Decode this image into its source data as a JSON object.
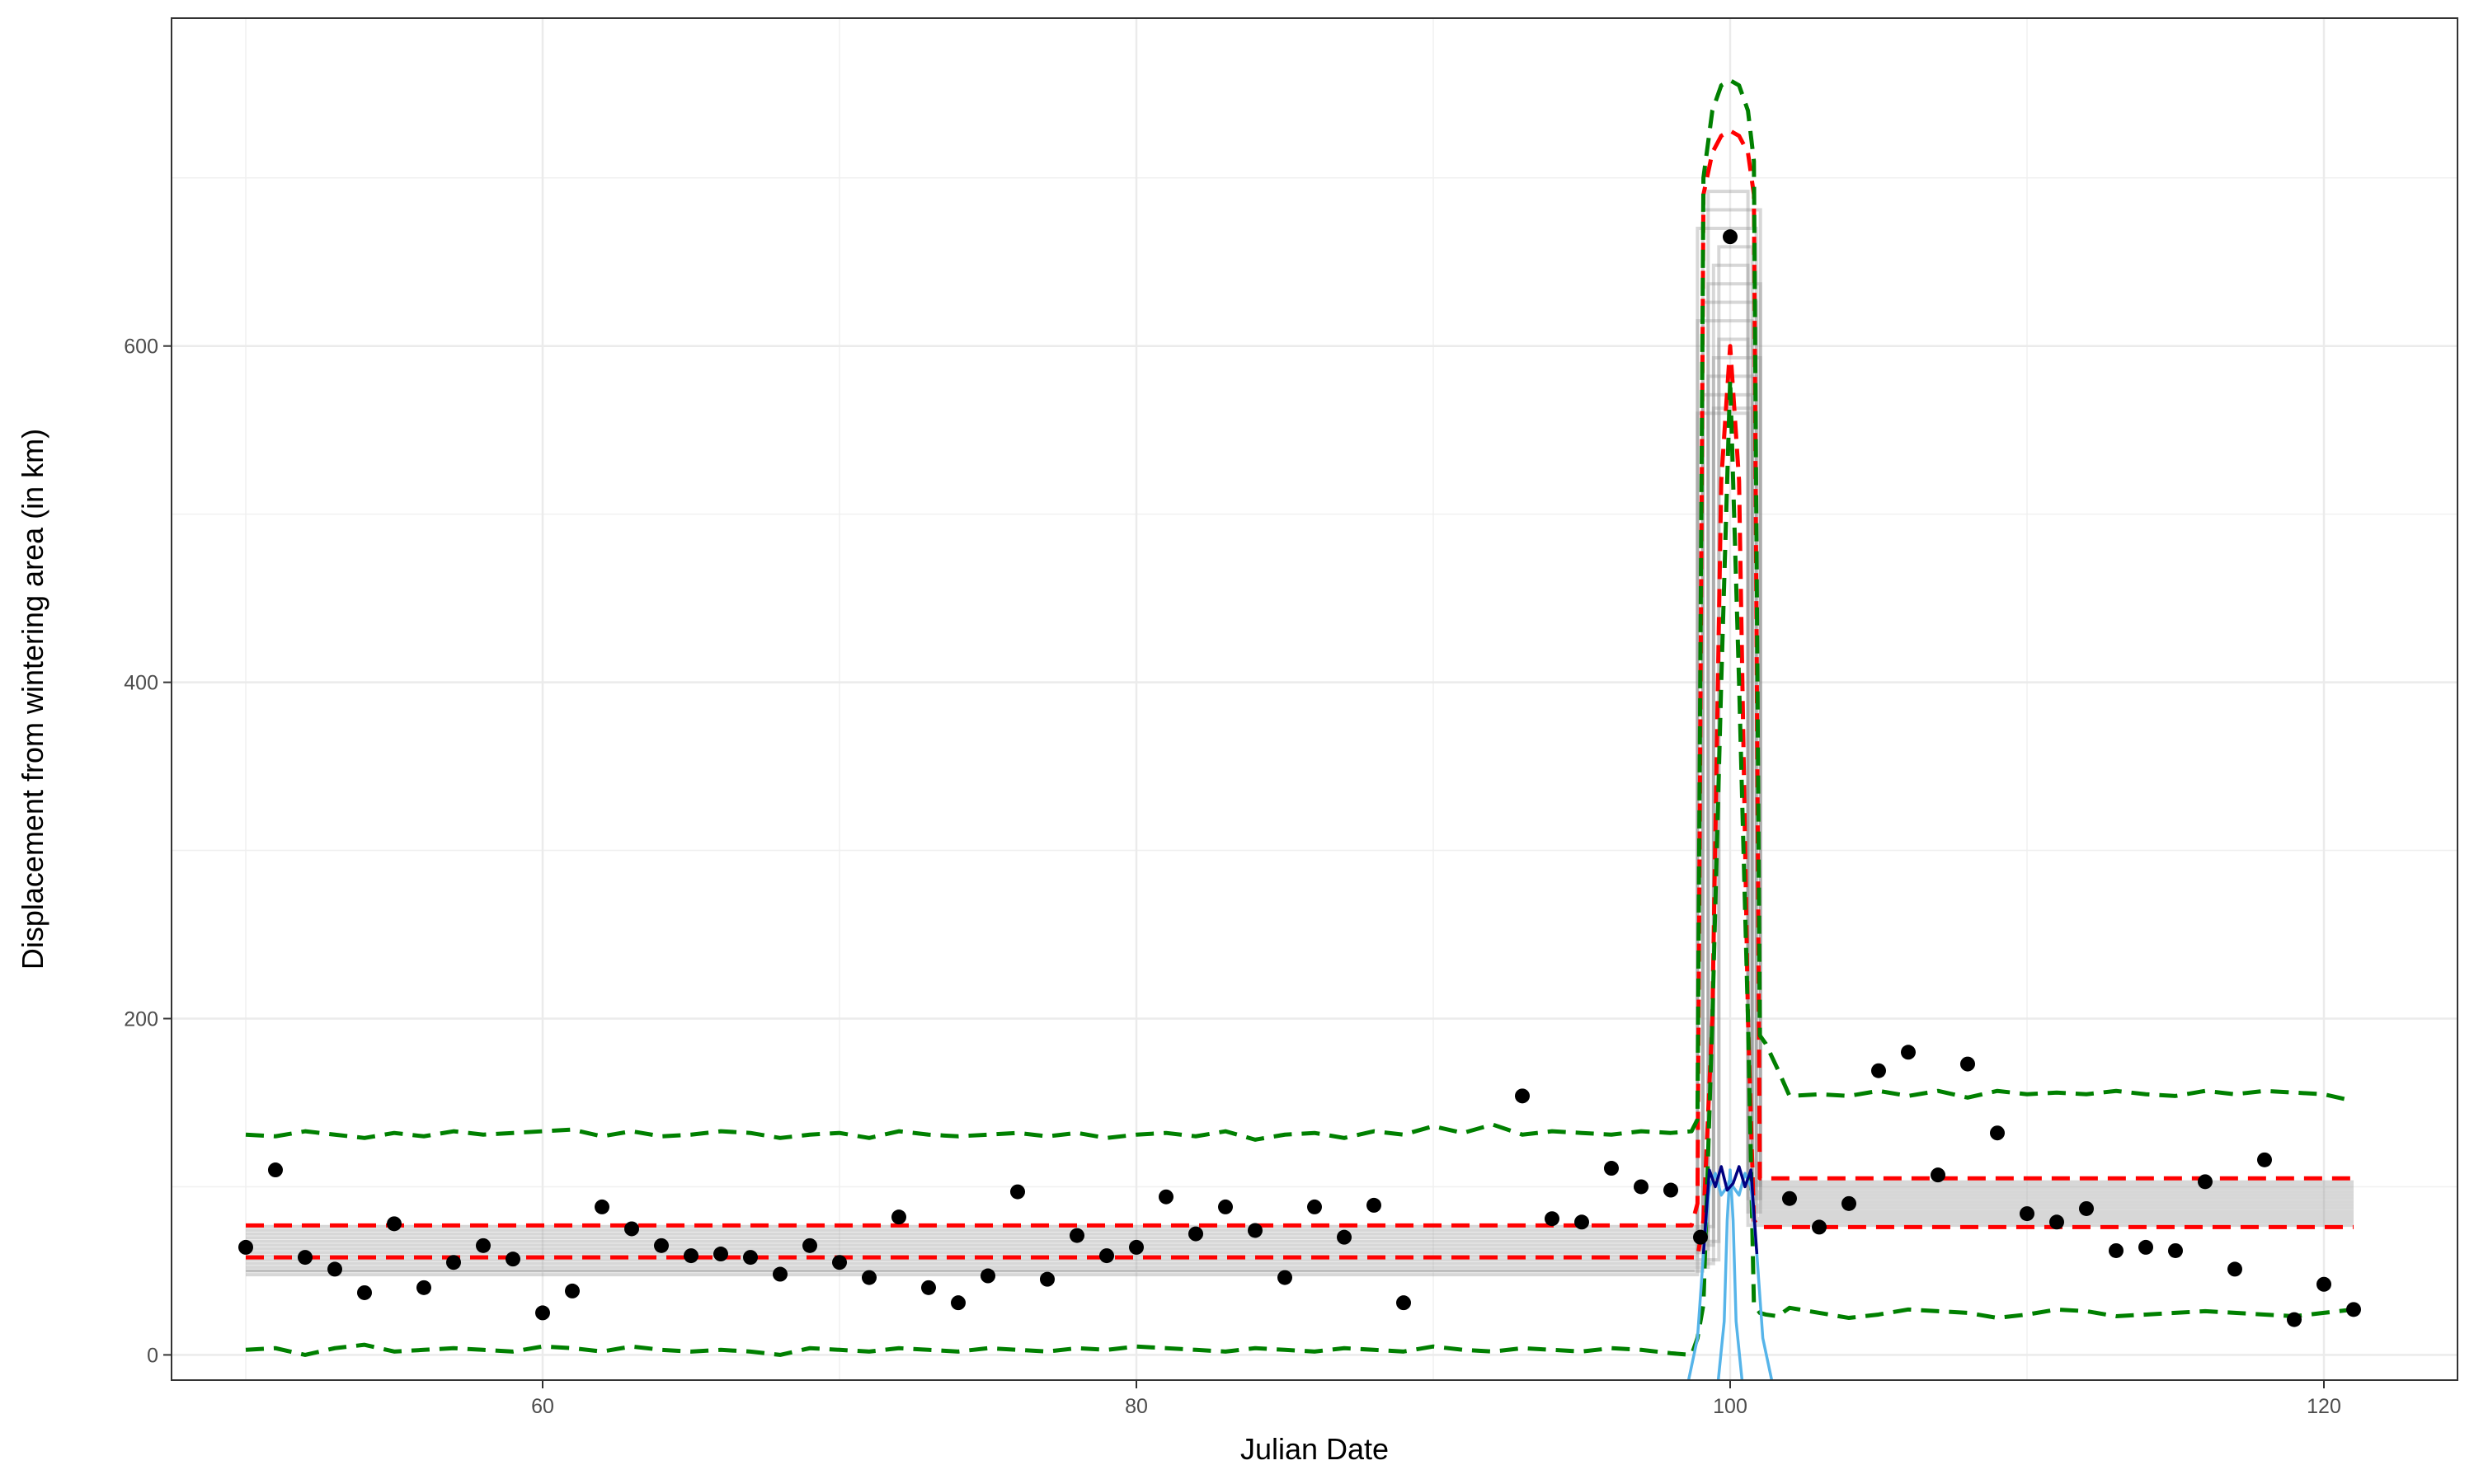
{
  "chart_data": {
    "type": "scatter",
    "title": "",
    "xlabel": "Julian Date",
    "ylabel": "Displacement from wintering area (in km)",
    "xlim": [
      47.5,
      124.5
    ],
    "ylim": [
      -15,
      795
    ],
    "x_ticks": [
      60,
      80,
      100,
      120
    ],
    "y_ticks": [
      0,
      200,
      400,
      600
    ],
    "grid": true,
    "legend": "none",
    "points": {
      "x": [
        50,
        51,
        52,
        53,
        54,
        55,
        56,
        57,
        58,
        59,
        60,
        61,
        62,
        63,
        64,
        65,
        66,
        67,
        68,
        69,
        70,
        71,
        72,
        73,
        74,
        75,
        76,
        77,
        78,
        79,
        80,
        81,
        82,
        83,
        84,
        85,
        86,
        87,
        88,
        89,
        93,
        94,
        95,
        96,
        97,
        98,
        99,
        100,
        102,
        103,
        104,
        105,
        106,
        107,
        108,
        109,
        110,
        111,
        112,
        113,
        114,
        115,
        116,
        117,
        118,
        119,
        120,
        121
      ],
      "y": [
        64,
        110,
        58,
        51,
        37,
        78,
        40,
        55,
        65,
        57,
        25,
        38,
        88,
        75,
        65,
        59,
        60,
        58,
        48,
        65,
        55,
        46,
        82,
        40,
        31,
        47,
        97,
        45,
        71,
        59,
        64,
        94,
        72,
        88,
        74,
        46,
        88,
        70,
        89,
        31,
        154,
        81,
        79,
        111,
        100,
        98,
        70,
        665,
        93,
        76,
        90,
        169,
        180,
        107,
        173,
        132,
        84,
        79,
        87,
        62,
        64,
        62,
        103,
        51,
        116,
        21,
        42,
        27
      ]
    },
    "series": [
      {
        "color": "#ff0000",
        "style": "dashed",
        "x": [
          50,
          98.7,
          98.9,
          99.1,
          99.4,
          99.7,
          100,
          100.3,
          100.6,
          100.8,
          101,
          101.2,
          121
        ],
        "upper": [
          77,
          77,
          90,
          690,
          715,
          725,
          728,
          725,
          715,
          690,
          105,
          105,
          105
        ],
        "lower": [
          58,
          58,
          58,
          80,
          200,
          520,
          600,
          520,
          200,
          80,
          76,
          76,
          76
        ]
      },
      {
        "color": "#008000",
        "style": "dashed",
        "x": [
          50,
          51,
          52,
          53,
          54,
          55,
          56,
          57,
          58,
          59,
          60,
          61,
          62,
          63,
          64,
          65,
          66,
          67,
          68,
          69,
          70,
          71,
          72,
          73,
          74,
          75,
          76,
          77,
          78,
          79,
          80,
          81,
          82,
          83,
          84,
          85,
          86,
          87,
          88,
          89,
          90,
          91,
          92,
          93,
          94,
          95,
          96,
          97,
          98,
          98.7,
          98.9,
          99.1,
          99.4,
          99.7,
          100,
          100.3,
          100.6,
          100.8,
          101,
          101.2,
          101.6,
          102,
          103,
          104,
          105,
          106,
          107,
          108,
          109,
          110,
          111,
          112,
          113,
          114,
          115,
          116,
          117,
          118,
          119,
          120,
          121
        ],
        "upper": [
          131,
          130,
          133,
          131,
          129,
          132,
          130,
          133,
          131,
          132,
          133,
          134,
          130,
          133,
          130,
          131,
          133,
          132,
          129,
          131,
          132,
          129,
          133,
          131,
          130,
          131,
          132,
          130,
          132,
          129,
          131,
          132,
          130,
          133,
          128,
          131,
          132,
          129,
          133,
          131,
          136,
          132,
          137,
          131,
          133,
          132,
          131,
          133,
          132,
          133,
          140,
          700,
          740,
          755,
          758,
          755,
          740,
          710,
          190,
          185,
          170,
          154,
          155,
          154,
          157,
          154,
          157,
          153,
          157,
          155,
          156,
          155,
          157,
          155,
          154,
          157,
          155,
          157,
          156,
          155,
          151
        ],
        "lower": [
          3,
          4,
          0,
          4,
          6,
          2,
          3,
          4,
          3,
          2,
          5,
          4,
          2,
          5,
          3,
          2,
          3,
          2,
          0,
          4,
          3,
          2,
          4,
          3,
          2,
          4,
          3,
          2,
          4,
          3,
          5,
          4,
          3,
          2,
          4,
          3,
          2,
          4,
          3,
          2,
          5,
          3,
          2,
          4,
          3,
          2,
          4,
          3,
          1,
          0,
          10,
          30,
          200,
          400,
          580,
          400,
          200,
          30,
          25,
          24,
          23,
          28,
          25,
          22,
          24,
          27,
          26,
          25,
          22,
          24,
          27,
          26,
          23,
          24,
          25,
          26,
          25,
          24,
          23,
          25,
          27
        ]
      },
      {
        "color": "#56B4E9",
        "style": "solid",
        "x": [
          98.6,
          98.9,
          99.1,
          99.3,
          99.5,
          99.7,
          99.9,
          100,
          100.1,
          100.3,
          100.5,
          100.7,
          100.9,
          101.1,
          101.4
        ],
        "y": [
          -15,
          10,
          60,
          100,
          108,
          95,
          100,
          105,
          100,
          95,
          108,
          100,
          60,
          10,
          -15
        ]
      },
      {
        "color": "#56B4E9",
        "style": "solid",
        "x": [
          99.6,
          99.8,
          99.9,
          100,
          100.1,
          100.2,
          100.4
        ],
        "y": [
          -15,
          20,
          80,
          110,
          80,
          20,
          -15
        ]
      },
      {
        "color": "#000080",
        "style": "solid",
        "x": [
          99.1,
          99.3,
          99.5,
          99.7,
          99.9,
          100.1,
          100.3,
          100.5,
          100.7,
          100.9
        ],
        "y": [
          60,
          110,
          100,
          112,
          98,
          102,
          112,
          100,
          110,
          60
        ]
      },
      {
        "color": "#808080",
        "style": "solid",
        "x": [
          50,
          121
        ],
        "y": [
          62,
          90
        ]
      }
    ]
  }
}
